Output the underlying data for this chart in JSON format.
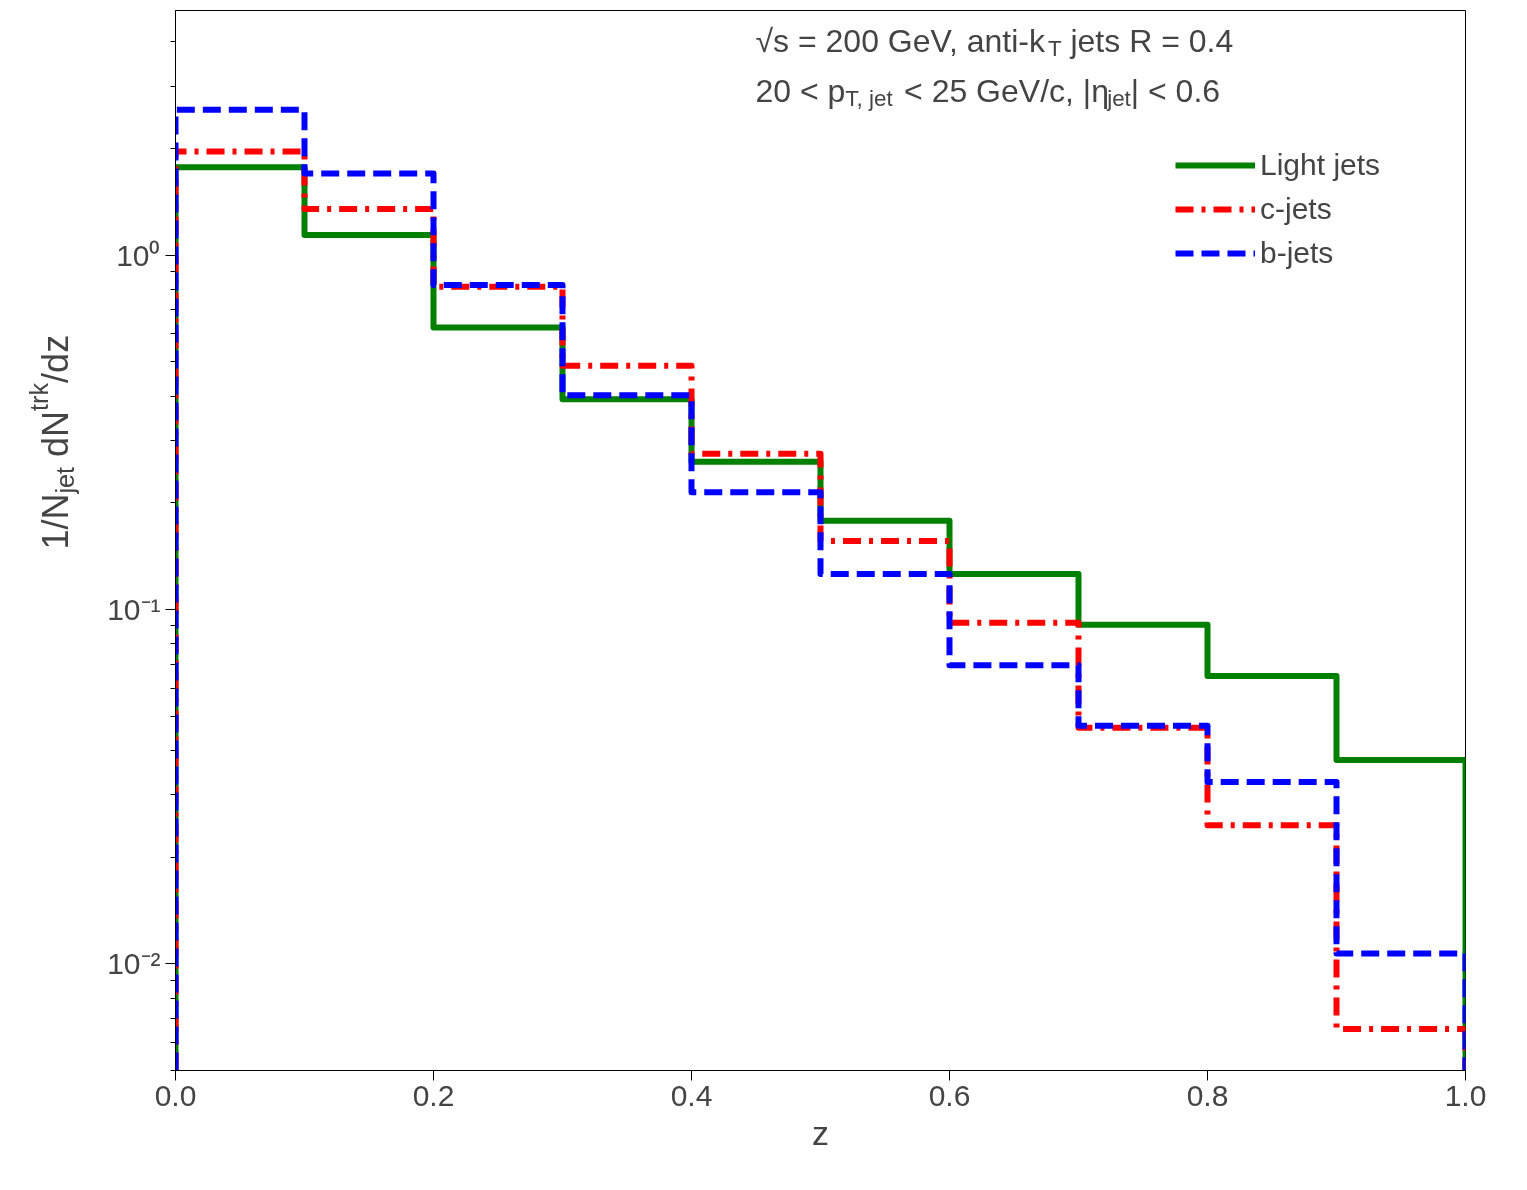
{
  "chart_data": {
    "type": "histogram",
    "xlabel": "z",
    "ylabel": "1/N$_{jet}$ dN$^{trk}$/dz",
    "annotations": [
      "√s = 200 GeV, anti-k$_{T}$ jets R = 0.4",
      "20 < p$_{T, jet}$ < 25 GeV/c, |η$_{jet}$| < 0.6"
    ],
    "bins": [
      0,
      0.1,
      0.2,
      0.3,
      0.4,
      0.5,
      0.6,
      0.7,
      0.8,
      0.9,
      1.0
    ],
    "series": [
      {
        "name": "Light jets",
        "color": "#008000",
        "line_style": "solid",
        "values": [
          1.77,
          1.14,
          0.625,
          0.392,
          0.261,
          0.178,
          0.126,
          0.0905,
          0.0649,
          0.0376
        ]
      },
      {
        "name": "c-jets",
        "color": "#ff0000",
        "line_style": "dashdot",
        "values": [
          1.96,
          1.35,
          0.814,
          0.487,
          0.275,
          0.156,
          0.0917,
          0.0464,
          0.0246,
          0.00655
        ]
      },
      {
        "name": "b-jets",
        "color": "#0000ff",
        "line_style": "dashed",
        "values": [
          2.57,
          1.7,
          0.824,
          0.402,
          0.214,
          0.126,
          0.0696,
          0.047,
          0.0326,
          0.0107
        ]
      }
    ],
    "log": "y",
    "xlim": [
      0,
      1.0
    ],
    "ylim": [
      0.005,
      4.9
    ],
    "xticks": [
      {
        "value": 0,
        "label": "0.0"
      },
      0.2,
      0.4,
      0.6,
      0.8,
      {
        "value": 1.0,
        "label": "1.0"
      }
    ],
    "yticks": [
      {
        "value": 0.01,
        "label": "10⁻²"
      },
      {
        "value": 0.1,
        "label": "10⁻¹"
      },
      {
        "value": 1,
        "label": "10⁰"
      }
    ],
    "grid": false,
    "legend": "top right"
  }
}
